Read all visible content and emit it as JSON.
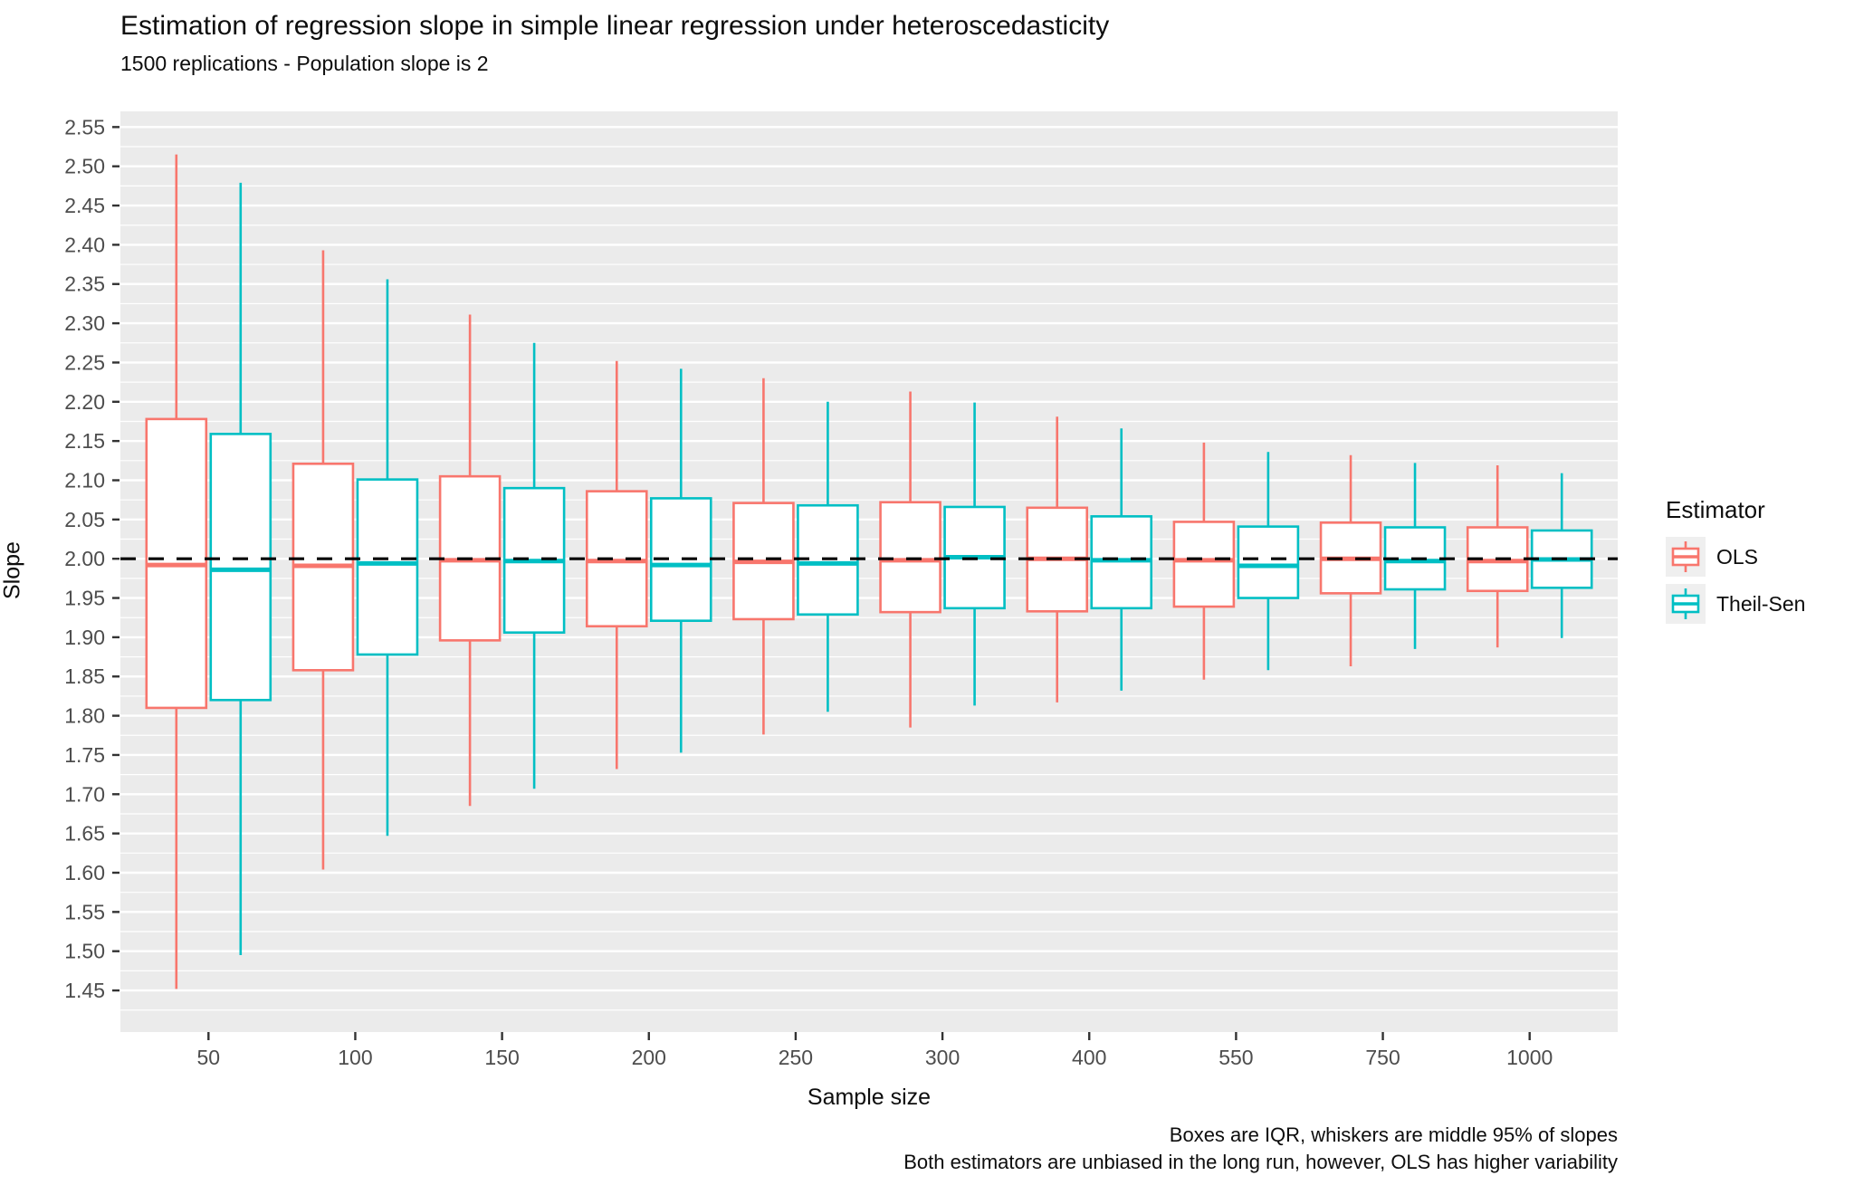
{
  "title": "Estimation of regression slope in simple linear regression under heteroscedasticity",
  "subtitle": "1500 replications - Population slope is 2",
  "axes": {
    "x_title": "Sample size",
    "y_title": "Slope"
  },
  "caption": {
    "line1": "Boxes are IQR, whiskers are middle 95% of slopes",
    "line2": "Both estimators are unbiased in the long run, however, OLS has higher variability"
  },
  "legend": {
    "title": "Estimator",
    "items": [
      {
        "label": "OLS",
        "color": "#F8766D"
      },
      {
        "label": "Theil-Sen",
        "color": "#00BFC4"
      }
    ]
  },
  "colors": {
    "panel_background": "#EBEBEB",
    "gridline": "#FFFFFF",
    "tick_mark": "#333333",
    "tick_label": "#4D4D4D",
    "reference_line": "#000000",
    "box_fill": "#FFFFFF",
    "ols": "#F8766D",
    "theil_sen": "#00BFC4"
  },
  "chart_data": {
    "type": "boxplot",
    "title": "Estimation of regression slope in simple linear regression under heteroscedasticity",
    "subtitle": "1500 replications - Population slope is 2",
    "xlabel": "Sample size",
    "ylabel": "Slope",
    "categories": [
      "50",
      "100",
      "150",
      "200",
      "250",
      "300",
      "400",
      "550",
      "750",
      "1000"
    ],
    "y_tick_labels": [
      "1.45",
      "1.50",
      "1.55",
      "1.60",
      "1.65",
      "1.70",
      "1.75",
      "1.80",
      "1.85",
      "1.90",
      "1.95",
      "2.00",
      "2.05",
      "2.10",
      "2.15",
      "2.20",
      "2.25",
      "2.30",
      "2.35",
      "2.40",
      "2.45",
      "2.50",
      "2.55"
    ],
    "y_tick_values": [
      1.45,
      1.5,
      1.55,
      1.6,
      1.65,
      1.7,
      1.75,
      1.8,
      1.85,
      1.9,
      1.95,
      2.0,
      2.05,
      2.1,
      2.15,
      2.2,
      2.25,
      2.3,
      2.35,
      2.4,
      2.45,
      2.5,
      2.55
    ],
    "ylim": [
      1.397,
      2.57
    ],
    "grid": "major+minor",
    "minor_grid_step": 0.05,
    "minor_grid_start": 1.425,
    "reference_line_y": 2,
    "legend_position": "right",
    "whisker_definition": "middle 95% of slopes",
    "box_definition": "IQR",
    "series": [
      {
        "name": "OLS",
        "color": "#F8766D",
        "boxes": [
          {
            "category": "50",
            "low": 1.452,
            "q1": 1.81,
            "median": 1.992,
            "q3": 2.178,
            "high": 2.515
          },
          {
            "category": "100",
            "low": 1.604,
            "q1": 1.858,
            "median": 1.991,
            "q3": 2.121,
            "high": 2.393
          },
          {
            "category": "150",
            "low": 1.685,
            "q1": 1.896,
            "median": 1.998,
            "q3": 2.105,
            "high": 2.311
          },
          {
            "category": "200",
            "low": 1.732,
            "q1": 1.914,
            "median": 1.997,
            "q3": 2.086,
            "high": 2.252
          },
          {
            "category": "250",
            "low": 1.776,
            "q1": 1.923,
            "median": 1.996,
            "q3": 2.071,
            "high": 2.23
          },
          {
            "category": "300",
            "low": 1.785,
            "q1": 1.932,
            "median": 1.998,
            "q3": 2.072,
            "high": 2.213
          },
          {
            "category": "400",
            "low": 1.817,
            "q1": 1.933,
            "median": 2.0,
            "q3": 2.065,
            "high": 2.181
          },
          {
            "category": "550",
            "low": 1.846,
            "q1": 1.939,
            "median": 1.998,
            "q3": 2.047,
            "high": 2.148
          },
          {
            "category": "750",
            "low": 1.863,
            "q1": 1.956,
            "median": 2.0,
            "q3": 2.046,
            "high": 2.132
          },
          {
            "category": "1000",
            "low": 1.887,
            "q1": 1.959,
            "median": 1.997,
            "q3": 2.04,
            "high": 2.119
          }
        ]
      },
      {
        "name": "Theil-Sen",
        "color": "#00BFC4",
        "boxes": [
          {
            "category": "50",
            "low": 1.495,
            "q1": 1.82,
            "median": 1.986,
            "q3": 2.159,
            "high": 2.479
          },
          {
            "category": "100",
            "low": 1.647,
            "q1": 1.878,
            "median": 1.994,
            "q3": 2.101,
            "high": 2.356
          },
          {
            "category": "150",
            "low": 1.707,
            "q1": 1.906,
            "median": 1.997,
            "q3": 2.09,
            "high": 2.275
          },
          {
            "category": "200",
            "low": 1.753,
            "q1": 1.921,
            "median": 1.992,
            "q3": 2.077,
            "high": 2.242
          },
          {
            "category": "250",
            "low": 1.805,
            "q1": 1.929,
            "median": 1.994,
            "q3": 2.068,
            "high": 2.2
          },
          {
            "category": "300",
            "low": 1.813,
            "q1": 1.937,
            "median": 2.002,
            "q3": 2.066,
            "high": 2.199
          },
          {
            "category": "400",
            "low": 1.832,
            "q1": 1.937,
            "median": 1.998,
            "q3": 2.054,
            "high": 2.166
          },
          {
            "category": "550",
            "low": 1.858,
            "q1": 1.95,
            "median": 1.991,
            "q3": 2.041,
            "high": 2.136
          },
          {
            "category": "750",
            "low": 1.885,
            "q1": 1.961,
            "median": 1.997,
            "q3": 2.04,
            "high": 2.122
          },
          {
            "category": "1000",
            "low": 1.899,
            "q1": 1.963,
            "median": 1.999,
            "q3": 2.036,
            "high": 2.109
          }
        ]
      }
    ]
  }
}
